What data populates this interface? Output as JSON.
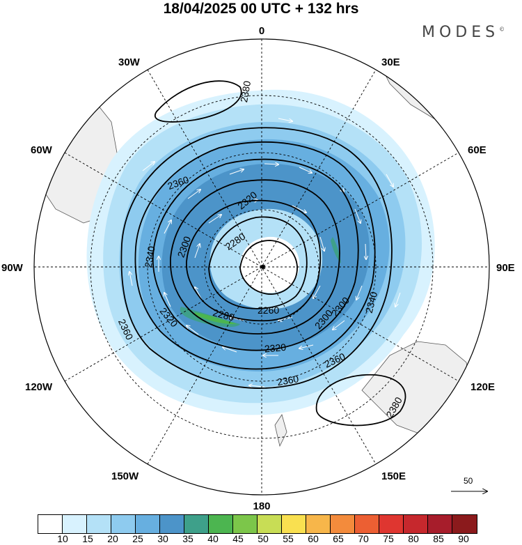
{
  "title": "18/04/2025  00 UTC  + 132 hrs",
  "brand": "MODES",
  "brand_mark": "©",
  "longitude_labels": {
    "top": "0",
    "bottom": "180",
    "left": "90W",
    "right": "90E",
    "upper_left_1": "30W",
    "upper_left_2": "60W",
    "upper_right_1": "30E",
    "upper_right_2": "60E",
    "lower_left_1": "120W",
    "lower_left_2": "150W",
    "lower_right_1": "120E",
    "lower_right_2": "150E"
  },
  "contour_labels": {
    "c2380_a": "2380",
    "c2360_a": "2360",
    "c2340_a": "2340",
    "c2320_a": "2320",
    "c2300_a": "2300",
    "c2280_a": "2280",
    "c2260_a": "2260",
    "c2280_b": "2280",
    "c2300_b": "2300",
    "c2320_b": "2320",
    "c2340_b": "2340",
    "c2360_b": "2360",
    "c2360_c": "2360",
    "c2320_c": "2320",
    "c2360_d": "2360",
    "c2380_b": "2380",
    "c2300_c": "2300"
  },
  "reference_vector": "50",
  "colorbar": {
    "colors": [
      "#ffffff",
      "#d8f2fe",
      "#b4e1f7",
      "#8ecbef",
      "#67afe0",
      "#4c94c9",
      "#3ea08a",
      "#4cb550",
      "#7cc64a",
      "#c8dd55",
      "#f9e050",
      "#f7b64a",
      "#f38b3c",
      "#ec5f33",
      "#df3630",
      "#c6282d",
      "#a71d2b",
      "#8b1a1c"
    ],
    "ticks": [
      "10",
      "15",
      "20",
      "25",
      "30",
      "35",
      "40",
      "45",
      "50",
      "55",
      "60",
      "65",
      "70",
      "75",
      "80",
      "85",
      "90"
    ]
  }
}
